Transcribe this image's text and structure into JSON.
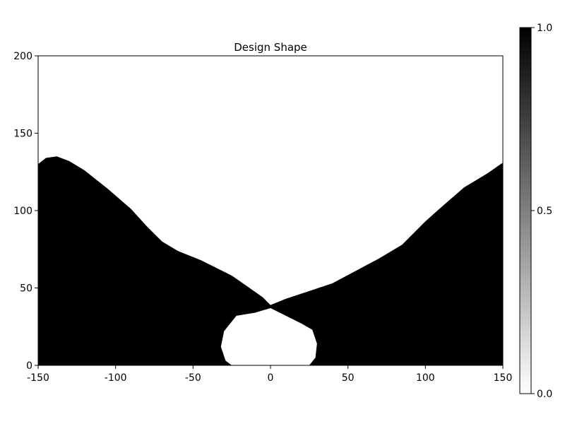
{
  "chart_data": {
    "type": "heatmap",
    "title": "Design Shape",
    "xlabel": "",
    "ylabel": "",
    "xlim": [
      -150,
      150
    ],
    "ylim": [
      0,
      200
    ],
    "xticks": [
      -150,
      -100,
      -50,
      0,
      50,
      100,
      150
    ],
    "yticks": [
      0,
      50,
      100,
      150,
      200
    ],
    "colorbar": {
      "min": 0.0,
      "max": 1.0,
      "ticks": [
        "0.0",
        "0.5",
        "1.0"
      ],
      "colormap": "white-to-black"
    },
    "colors": {
      "solid": "#000000",
      "void": "#ffffff"
    },
    "solid_region_left_boundary": [
      [
        -150,
        130
      ],
      [
        -145,
        134
      ],
      [
        -138,
        135
      ],
      [
        -130,
        132
      ],
      [
        -120,
        126
      ],
      [
        -105,
        114
      ],
      [
        -90,
        101
      ],
      [
        -80,
        90
      ],
      [
        -70,
        80
      ],
      [
        -60,
        74
      ],
      [
        -45,
        68
      ],
      [
        -35,
        63
      ],
      [
        -25,
        58
      ],
      [
        -15,
        51
      ],
      [
        -5,
        44
      ],
      [
        0,
        39
      ]
    ],
    "solid_region_right_boundary": [
      [
        0,
        39
      ],
      [
        10,
        43
      ],
      [
        25,
        48
      ],
      [
        40,
        53
      ],
      [
        55,
        61
      ],
      [
        70,
        69
      ],
      [
        85,
        78
      ],
      [
        100,
        93
      ],
      [
        110,
        102
      ],
      [
        125,
        115
      ],
      [
        140,
        124
      ],
      [
        150,
        131
      ]
    ],
    "void_hole_boundary": [
      [
        0,
        37
      ],
      [
        -10,
        34
      ],
      [
        -22,
        32
      ],
      [
        -30,
        22
      ],
      [
        -32,
        12
      ],
      [
        -29,
        3
      ],
      [
        -25,
        0
      ],
      [
        25,
        0
      ],
      [
        29,
        5
      ],
      [
        30,
        14
      ],
      [
        27,
        23
      ],
      [
        20,
        27
      ],
      [
        10,
        32
      ],
      [
        0,
        37
      ]
    ]
  }
}
